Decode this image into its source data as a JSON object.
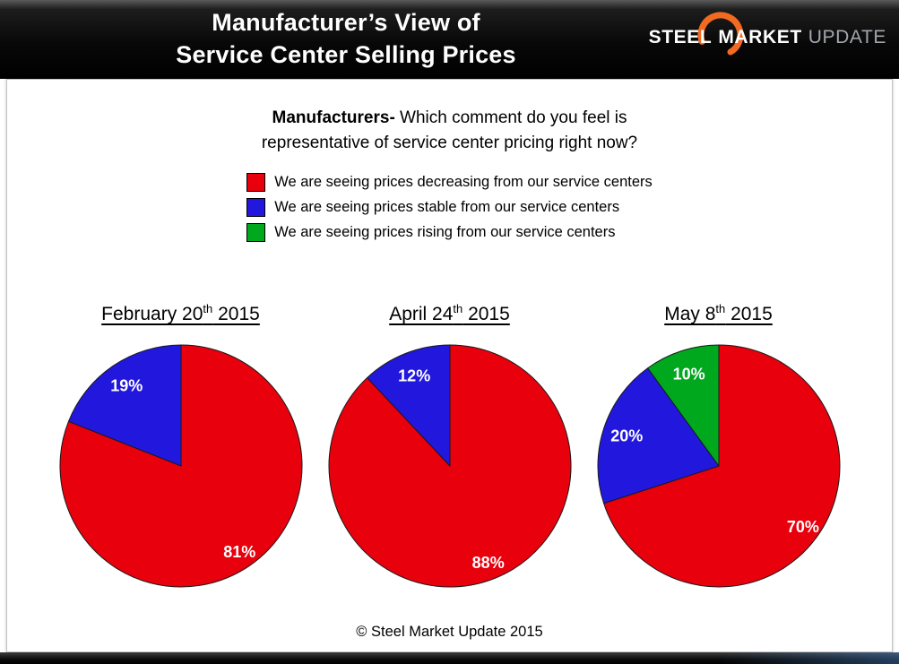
{
  "header": {
    "title_line1": "Manufacturer’s View of",
    "title_line2": "Service Center Selling Prices",
    "logo": {
      "steel": "STEEL",
      "market": "MARKET",
      "update": "UPDATE"
    }
  },
  "question": {
    "lead": "Manufacturers-",
    "line1_rest": " Which comment do you feel is",
    "line2": "representative of service center pricing right now?"
  },
  "legend": [
    {
      "name": "decreasing",
      "color": "#e8000d",
      "label": "We are seeing prices decreasing from our service centers"
    },
    {
      "name": "stable",
      "color": "#2217dd",
      "label": "We are seeing prices stable from our service centers"
    },
    {
      "name": "rising",
      "color": "#00a81e",
      "label": "We are seeing prices rising from our service centers"
    }
  ],
  "footer": "© Steel Market Update 2015",
  "chart_data": [
    {
      "type": "pie",
      "title": "February 20th 2015",
      "title_parts": {
        "pre": "February 20",
        "sup": "th",
        "post": " 2015"
      },
      "legend_position": "top",
      "slices": [
        {
          "name": "decreasing",
          "value": 81,
          "color": "#e8000d"
        },
        {
          "name": "stable",
          "value": 19,
          "color": "#2217dd"
        },
        {
          "name": "rising",
          "value": 0,
          "color": "#00a81e"
        }
      ]
    },
    {
      "type": "pie",
      "title": "April 24th 2015",
      "title_parts": {
        "pre": "April 24",
        "sup": "th",
        "post": " 2015"
      },
      "legend_position": "top",
      "slices": [
        {
          "name": "decreasing",
          "value": 88,
          "color": "#e8000d"
        },
        {
          "name": "stable",
          "value": 12,
          "color": "#2217dd"
        },
        {
          "name": "rising",
          "value": 0,
          "color": "#00a81e"
        }
      ]
    },
    {
      "type": "pie",
      "title": "May 8th 2015",
      "title_parts": {
        "pre": "May 8",
        "sup": "th",
        "post": " 2015"
      },
      "legend_position": "top",
      "slices": [
        {
          "name": "decreasing",
          "value": 70,
          "color": "#e8000d"
        },
        {
          "name": "stable",
          "value": 20,
          "color": "#2217dd"
        },
        {
          "name": "rising",
          "value": 10,
          "color": "#00a81e"
        }
      ]
    }
  ]
}
